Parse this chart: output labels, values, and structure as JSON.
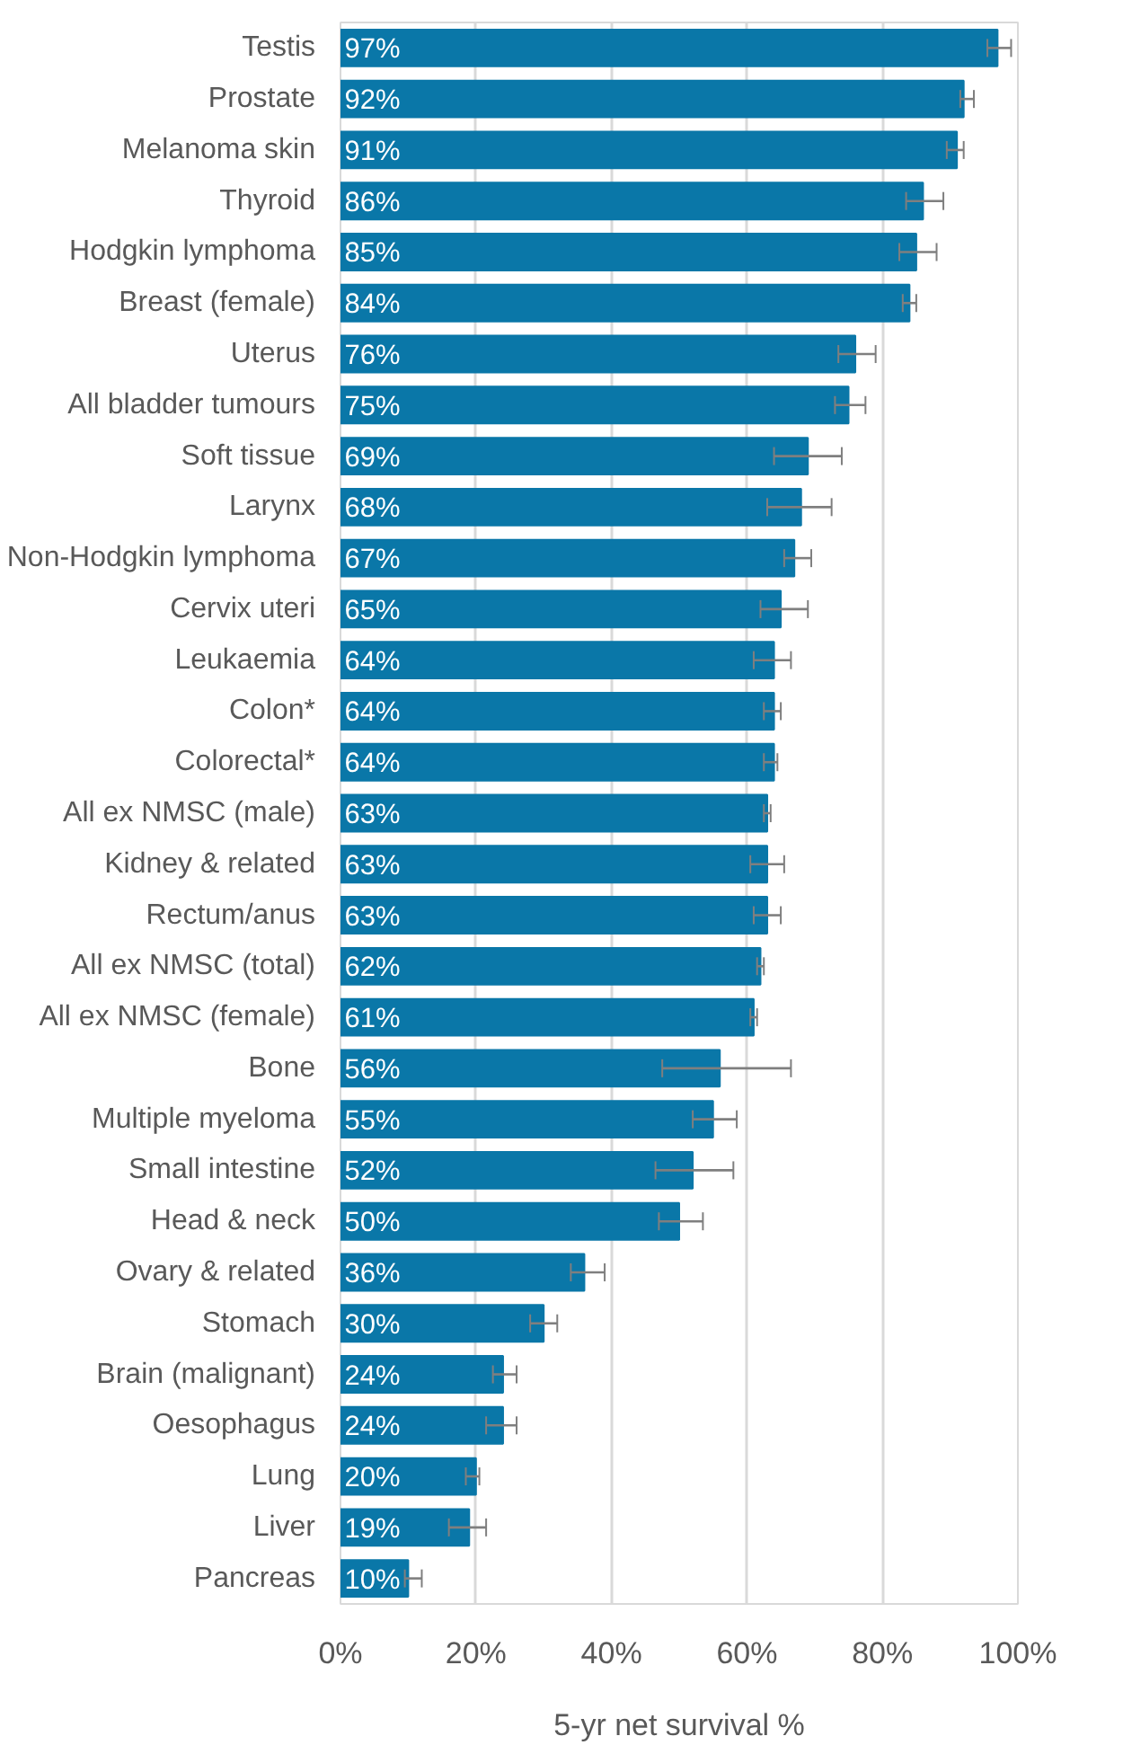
{
  "chart_data": {
    "type": "bar",
    "orientation": "horizontal",
    "xlabel": "5-yr net survival %",
    "categories": [
      "Testis",
      "Prostate",
      "Melanoma skin",
      "Thyroid",
      "Hodgkin lymphoma",
      "Breast (female)",
      "Uterus",
      "All bladder tumours",
      "Soft tissue",
      "Larynx",
      "Non-Hodgkin lymphoma",
      "Cervix uteri",
      "Leukaemia",
      "Colon*",
      "Colorectal*",
      "All ex NMSC (male)",
      "Kidney & related",
      "Rectum/anus",
      "All ex NMSC (total)",
      "All ex NMSC (female)",
      "Bone",
      "Multiple myeloma",
      "Small intestine",
      "Head & neck",
      "Ovary & related",
      "Stomach",
      "Brain (malignant)",
      "Oesophagus",
      "Lung",
      "Liver",
      "Pancreas"
    ],
    "values": [
      97,
      92,
      91,
      86,
      85,
      84,
      76,
      75,
      69,
      68,
      67,
      65,
      64,
      64,
      64,
      63,
      63,
      63,
      62,
      61,
      56,
      55,
      52,
      50,
      36,
      30,
      24,
      24,
      20,
      19,
      10
    ],
    "value_labels": [
      "97%",
      "92%",
      "91%",
      "86%",
      "85%",
      "84%",
      "76%",
      "75%",
      "69%",
      "68%",
      "67%",
      "65%",
      "64%",
      "64%",
      "64%",
      "63%",
      "63%",
      "63%",
      "62%",
      "61%",
      "56%",
      "55%",
      "52%",
      "50%",
      "36%",
      "30%",
      "24%",
      "24%",
      "20%",
      "19%",
      "10%"
    ],
    "errors": [
      [
        95.5,
        99
      ],
      [
        91.5,
        93.5
      ],
      [
        89.5,
        92
      ],
      [
        83.5,
        89
      ],
      [
        82.5,
        88
      ],
      [
        83,
        85
      ],
      [
        73.5,
        79
      ],
      [
        73,
        77.5
      ],
      [
        64,
        74
      ],
      [
        63,
        72.5
      ],
      [
        65.5,
        69.5
      ],
      [
        62,
        69
      ],
      [
        61,
        66.5
      ],
      [
        62.5,
        65
      ],
      [
        62.5,
        64.5
      ],
      [
        62.5,
        63.5
      ],
      [
        60.5,
        65.5
      ],
      [
        61,
        65
      ],
      [
        61.5,
        62.5
      ],
      [
        60.5,
        61.5
      ],
      [
        47.5,
        66.5
      ],
      [
        52,
        58.5
      ],
      [
        46.5,
        58
      ],
      [
        47,
        53.5
      ],
      [
        34,
        39
      ],
      [
        28,
        32
      ],
      [
        22.5,
        26
      ],
      [
        21.5,
        26
      ],
      [
        18.5,
        20.5
      ],
      [
        16,
        21.5
      ],
      [
        9.5,
        12
      ]
    ],
    "color": "#0a77a8",
    "xlim": [
      0,
      100
    ],
    "xticks": [
      {
        "value": 0,
        "label": "0%"
      },
      {
        "value": 20,
        "label": "20%"
      },
      {
        "value": 40,
        "label": "40%"
      },
      {
        "value": 60,
        "label": "60%"
      },
      {
        "value": 80,
        "label": "80%"
      },
      {
        "value": 100,
        "label": "100%"
      }
    ],
    "grid": "x"
  }
}
